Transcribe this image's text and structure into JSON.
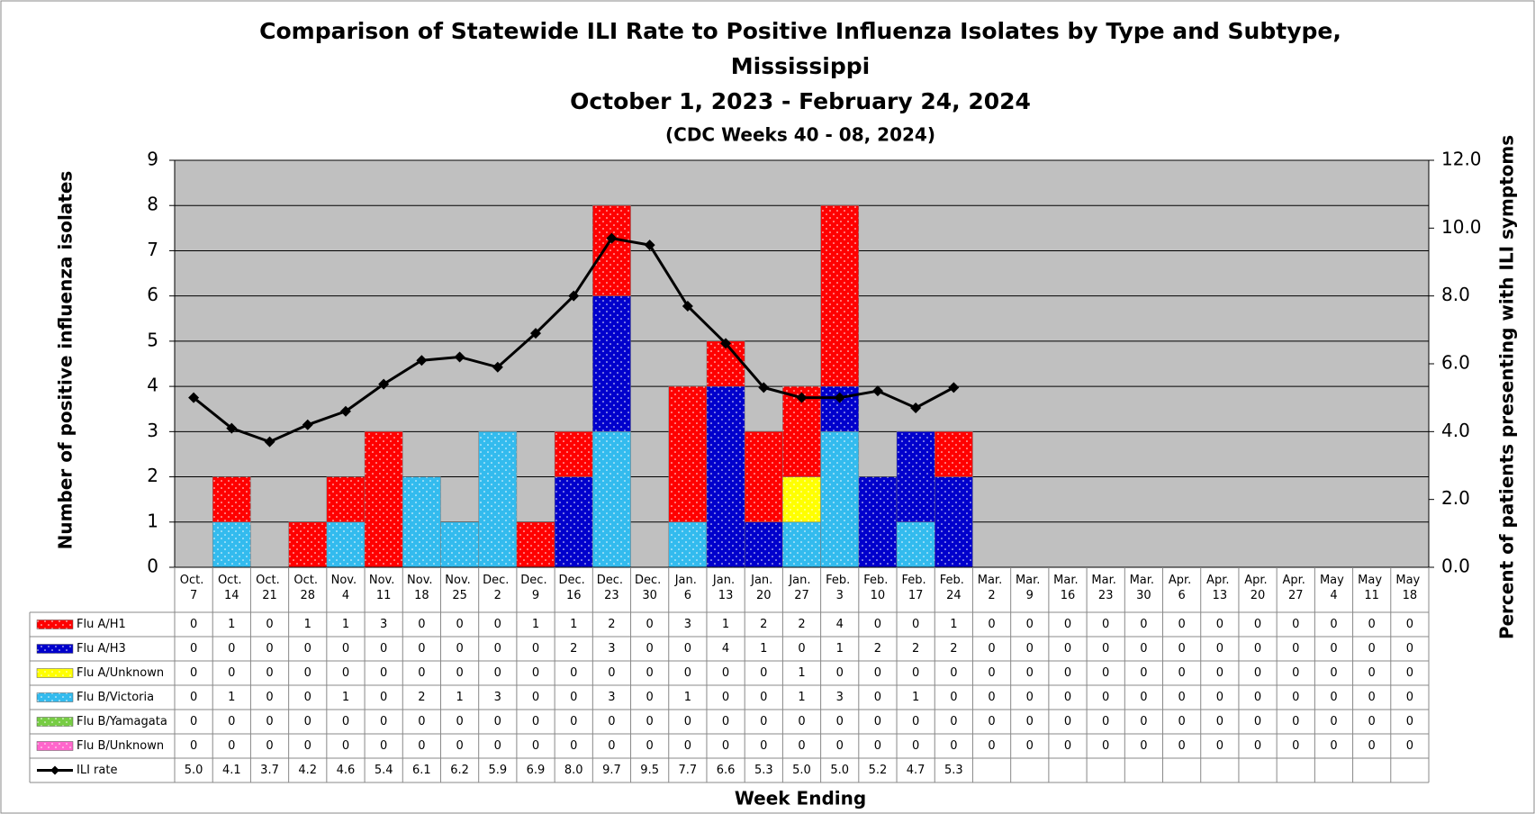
{
  "chart_data": {
    "type": "bar",
    "title": [
      "Comparison of Statewide ILI Rate to Positive Influenza Isolates by Type and Subtype,",
      "Mississippi"
    ],
    "subtitle": "October 1, 2023 - February 24, 2024",
    "note": "(CDC Weeks 40 - 08, 2024)",
    "x_label": "Week Ending",
    "y_label": "Number of positive influenza isolates",
    "y2_label": "Percent of patients presenting with ILI symptoms",
    "categories": [
      "Oct. 7",
      "Oct. 14",
      "Oct. 21",
      "Oct. 28",
      "Nov. 4",
      "Nov. 11",
      "Nov. 18",
      "Nov. 25",
      "Dec. 2",
      "Dec. 9",
      "Dec. 16",
      "Dec. 23",
      "Dec. 30",
      "Jan. 6",
      "Jan. 13",
      "Jan. 20",
      "Jan. 27",
      "Feb. 3",
      "Feb. 10",
      "Feb. 17",
      "Feb. 24",
      "Mar. 2",
      "Mar. 9",
      "Mar. 16",
      "Mar. 23",
      "Mar. 30",
      "Apr. 6",
      "Apr. 13",
      "Apr. 20",
      "Apr. 27",
      "May 4",
      "May 11",
      "May 18"
    ],
    "stacked": true,
    "series": [
      {
        "name": "Flu A/H1",
        "color": "#ff0000",
        "values": [
          0,
          1,
          0,
          1,
          1,
          3,
          0,
          0,
          0,
          1,
          1,
          2,
          0,
          3,
          1,
          2,
          2,
          4,
          0,
          0,
          1,
          0,
          0,
          0,
          0,
          0,
          0,
          0,
          0,
          0,
          0,
          0,
          0
        ]
      },
      {
        "name": "Flu A/H3",
        "color": "#0000cc",
        "values": [
          0,
          0,
          0,
          0,
          0,
          0,
          0,
          0,
          0,
          0,
          2,
          3,
          0,
          0,
          4,
          1,
          0,
          1,
          2,
          2,
          2,
          0,
          0,
          0,
          0,
          0,
          0,
          0,
          0,
          0,
          0,
          0,
          0
        ]
      },
      {
        "name": "Flu A/Unknown",
        "color": "#ffff00",
        "values": [
          0,
          0,
          0,
          0,
          0,
          0,
          0,
          0,
          0,
          0,
          0,
          0,
          0,
          0,
          0,
          0,
          1,
          0,
          0,
          0,
          0,
          0,
          0,
          0,
          0,
          0,
          0,
          0,
          0,
          0,
          0,
          0,
          0
        ]
      },
      {
        "name": "Flu B/Victoria",
        "color": "#33bbee",
        "values": [
          0,
          1,
          0,
          0,
          1,
          0,
          2,
          1,
          3,
          0,
          0,
          3,
          0,
          1,
          0,
          0,
          1,
          3,
          0,
          1,
          0,
          0,
          0,
          0,
          0,
          0,
          0,
          0,
          0,
          0,
          0,
          0,
          0
        ]
      },
      {
        "name": "Flu B/Yamagata",
        "color": "#77cc44",
        "values": [
          0,
          0,
          0,
          0,
          0,
          0,
          0,
          0,
          0,
          0,
          0,
          0,
          0,
          0,
          0,
          0,
          0,
          0,
          0,
          0,
          0,
          0,
          0,
          0,
          0,
          0,
          0,
          0,
          0,
          0,
          0,
          0,
          0
        ]
      },
      {
        "name": "Flu B/Unknown",
        "color": "#ff66cc",
        "values": [
          0,
          0,
          0,
          0,
          0,
          0,
          0,
          0,
          0,
          0,
          0,
          0,
          0,
          0,
          0,
          0,
          0,
          0,
          0,
          0,
          0,
          0,
          0,
          0,
          0,
          0,
          0,
          0,
          0,
          0,
          0,
          0,
          0
        ]
      },
      {
        "name": "ILI rate",
        "type": "line",
        "axis": "y2",
        "color": "#000000",
        "values": [
          5.0,
          4.1,
          3.7,
          4.2,
          4.6,
          5.4,
          6.1,
          6.2,
          5.9,
          6.9,
          8.0,
          9.7,
          9.5,
          7.7,
          6.6,
          5.3,
          5.0,
          5.0,
          5.2,
          4.7,
          5.3,
          null,
          null,
          null,
          null,
          null,
          null,
          null,
          null,
          null,
          null,
          null,
          null
        ],
        "value_labels": [
          "5.0",
          "4.1",
          "3.7",
          "4.2",
          "4.6",
          "5.4",
          "6.1",
          "6.2",
          "5.9",
          "6.9",
          "8.0",
          "9.7",
          "9.5",
          "7.7",
          "6.6",
          "5.3",
          "5.0",
          "5.0",
          "5.2",
          "4.7",
          "5.3",
          null,
          null,
          null,
          null,
          null,
          null,
          null,
          null,
          null,
          null,
          null,
          null
        ]
      }
    ],
    "ylim": [
      0,
      9
    ],
    "yticks": [
      0,
      1,
      2,
      3,
      4,
      5,
      6,
      7,
      8,
      9
    ],
    "y2lim": [
      0,
      12
    ],
    "y2ticks": [
      {
        "value": 0,
        "label": "0.0"
      },
      {
        "value": 2,
        "label": "2.0"
      },
      {
        "value": 4,
        "label": "4.0"
      },
      {
        "value": 6,
        "label": "6.0"
      },
      {
        "value": 8,
        "label": "8.0"
      },
      {
        "value": 10,
        "label": "10.0"
      },
      {
        "value": 12,
        "label": "12.0"
      }
    ],
    "grid": true,
    "plot_background": "#c0c0c0"
  }
}
